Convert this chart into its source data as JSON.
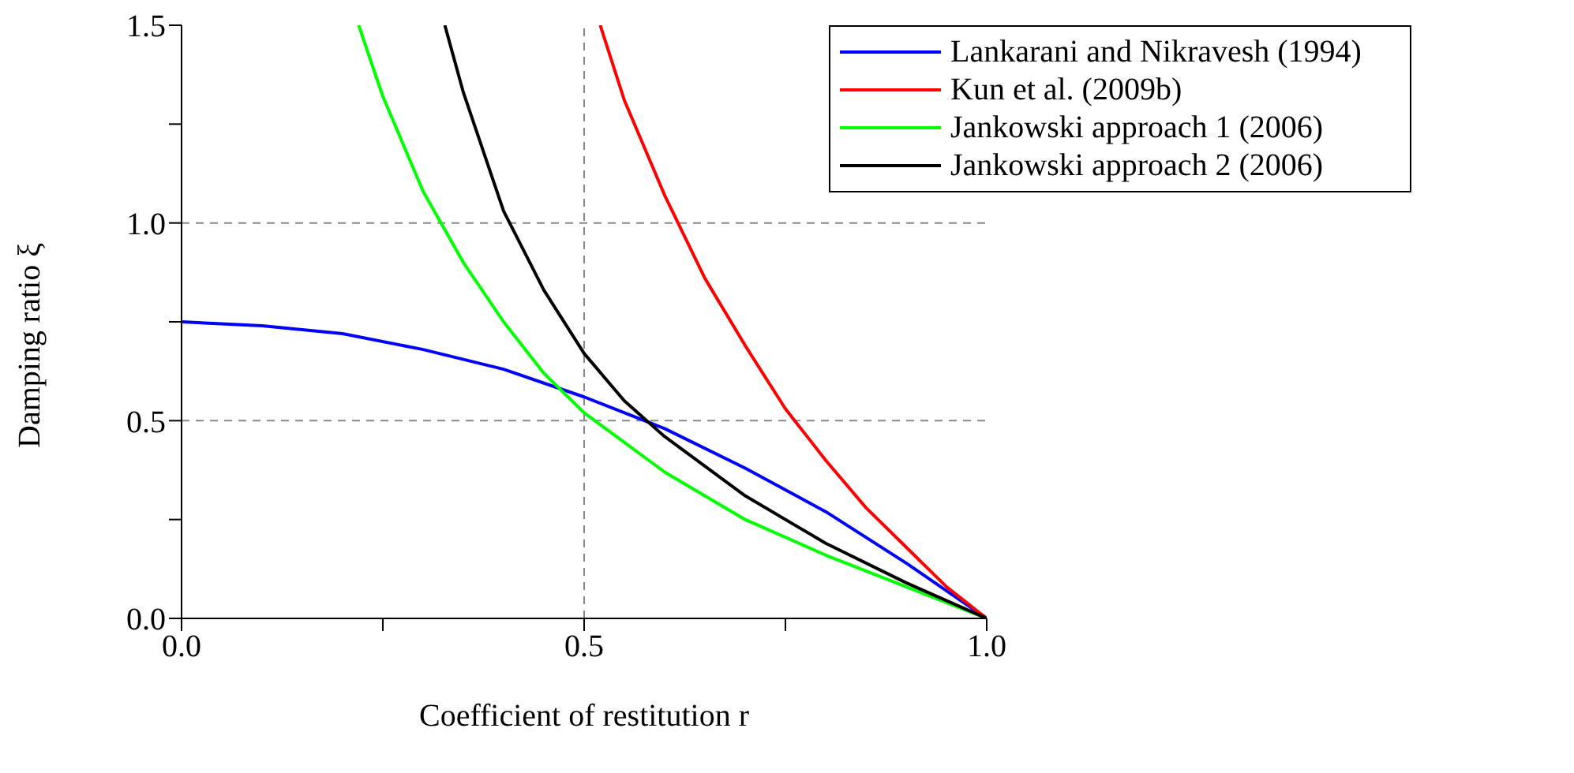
{
  "chart_data": {
    "type": "line",
    "xlabel": "Coefficient of restitution r",
    "ylabel": "Damping ratio ξ",
    "xlim": [
      0,
      1
    ],
    "ylim": [
      0,
      1.5
    ],
    "xticks": [
      {
        "value": 0,
        "label": "0.0"
      },
      {
        "value": 0.25,
        "label": null
      },
      {
        "value": 0.5,
        "label": "0.5"
      },
      {
        "value": 0.75,
        "label": null
      },
      {
        "value": 1,
        "label": "1.0"
      }
    ],
    "yticks": [
      {
        "value": 0,
        "label": "0.0"
      },
      {
        "value": 0.25,
        "label": null
      },
      {
        "value": 0.5,
        "label": "0.5"
      },
      {
        "value": 0.75,
        "label": null
      },
      {
        "value": 1,
        "label": "1.0"
      },
      {
        "value": 1.25,
        "label": null
      },
      {
        "value": 1.5,
        "label": "1.5"
      }
    ],
    "grid": true,
    "legend": "top right",
    "marker": "none",
    "line_style": "solid",
    "series": [
      {
        "name": "Lankarani and Nikravesh (1994)",
        "color": "#0000ff",
        "x": [
          0,
          0.1,
          0.2,
          0.3,
          0.4,
          0.5,
          0.6,
          0.7,
          0.8,
          0.9,
          1
        ],
        "values": [
          0.75,
          0.74,
          0.72,
          0.68,
          0.63,
          0.56,
          0.48,
          0.38,
          0.27,
          0.14,
          0
        ]
      },
      {
        "name": "Kun et al. (2009b)",
        "color": "#ff0000",
        "x": [
          0.52,
          0.55,
          0.6,
          0.65,
          0.7,
          0.75,
          0.8,
          0.85,
          0.9,
          0.95,
          1
        ],
        "values": [
          1.5,
          1.31,
          1.07,
          0.86,
          0.69,
          0.53,
          0.4,
          0.28,
          0.18,
          0.08,
          0
        ]
      },
      {
        "name": "Jankowski approach 1 (2006)",
        "color": "#00ff00",
        "x": [
          0.22,
          0.25,
          0.3,
          0.35,
          0.4,
          0.45,
          0.5,
          0.6,
          0.7,
          0.8,
          0.9,
          1
        ],
        "values": [
          1.5,
          1.32,
          1.08,
          0.9,
          0.75,
          0.62,
          0.52,
          0.37,
          0.25,
          0.16,
          0.08,
          0
        ]
      },
      {
        "name": "Jankowski approach 2 (2006)",
        "color": "#000000",
        "x": [
          0.327,
          0.35,
          0.4,
          0.45,
          0.5,
          0.55,
          0.6,
          0.7,
          0.8,
          0.9,
          1
        ],
        "values": [
          1.5,
          1.33,
          1.03,
          0.83,
          0.67,
          0.55,
          0.46,
          0.31,
          0.19,
          0.09,
          0
        ]
      }
    ]
  }
}
